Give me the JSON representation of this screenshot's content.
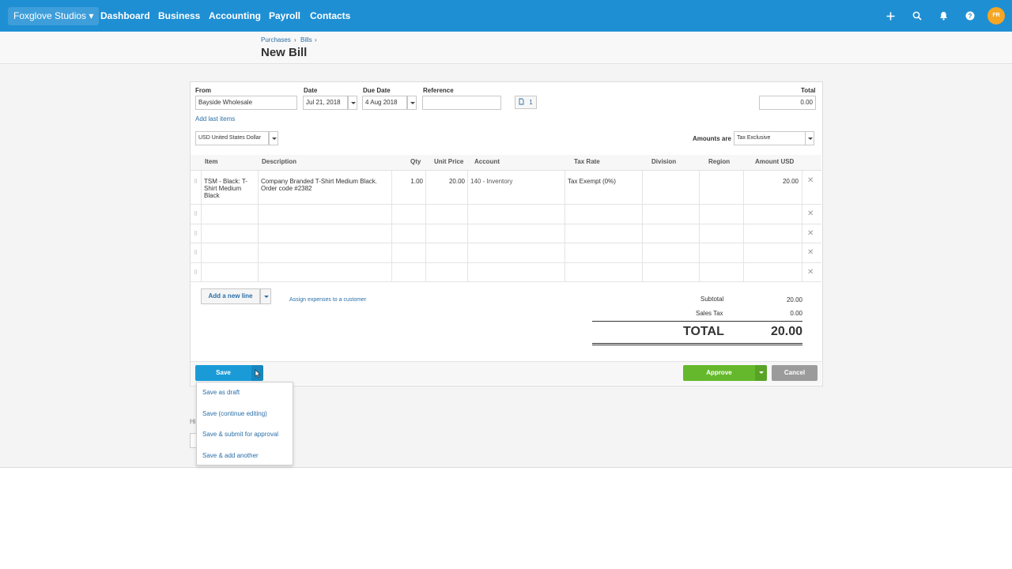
{
  "topbar": {
    "org_name": "Foxglove Studios",
    "nav": [
      "Dashboard",
      "Business",
      "Accounting",
      "Payroll",
      "Contacts"
    ],
    "icons": [
      "plus-icon",
      "search-icon",
      "bell-icon",
      "help-icon"
    ],
    "avatar_initials": "FR"
  },
  "breadcrumb": {
    "items": [
      "Purchases",
      "Bills"
    ],
    "separator": "›"
  },
  "page_title": "New Bill",
  "form": {
    "from_label": "From",
    "from_value": "Bayside Wholesale",
    "date_label": "Date",
    "date_value": "Jul 21, 2018",
    "due_label": "Due Date",
    "due_value": "4 Aug 2018",
    "reference_label": "Reference",
    "reference_value": "",
    "attachments_count": "1",
    "total_label": "Total",
    "total_value": "0.00",
    "add_last_items": "Add last items",
    "currency_value": "USD United States Dollar",
    "amounts_are_label": "Amounts are",
    "amounts_are_value": "Tax Exclusive"
  },
  "table": {
    "columns": [
      "Item",
      "Description",
      "Qty",
      "Unit Price",
      "Account",
      "Tax Rate",
      "Division",
      "Region",
      "Amount USD"
    ],
    "rows": [
      {
        "item": "TSM - Black: T-Shirt Medium Black",
        "description": "Company Branded T-Shirt Medium Black. Order code #2382",
        "qty": "1.00",
        "unit_price": "20.00",
        "account": "140 - Inventory",
        "tax_rate": "Tax Exempt (0%)",
        "division": "",
        "region": "",
        "amount": "20.00"
      }
    ],
    "empty_rows": 4
  },
  "actions": {
    "add_new_line": "Add a new line",
    "assign_expenses": "Assign expenses to a customer"
  },
  "totals": {
    "subtotal_label": "Subtotal",
    "subtotal_value": "20.00",
    "tax_label": "Sales Tax",
    "tax_value": "0.00",
    "total_label": "TOTAL",
    "total_value": "20.00"
  },
  "buttons": {
    "save": "Save",
    "approve": "Approve",
    "cancel": "Cancel"
  },
  "save_menu": [
    "Save as draft",
    "Save (continue editing)",
    "Save & submit for approval",
    "Save & add another"
  ],
  "behind_menu_text": "Hi",
  "colors": {
    "topbar": "#1f8fd4",
    "save": "#1a9bd8",
    "approve": "#65b82b",
    "cancel": "#9b9b9b",
    "link": "#2a6fa8"
  }
}
